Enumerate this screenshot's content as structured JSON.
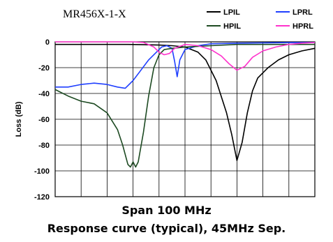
{
  "captions": {
    "line1": "Span 100 MHz",
    "line2": "Response curve (typical), 45MHz Sep."
  },
  "chart_data": {
    "type": "line",
    "title": "MR456X-1-X",
    "xlabel": "",
    "ylabel": "Loss (dB)",
    "xlim": [
      0,
      100
    ],
    "ylim": [
      -120,
      0
    ],
    "yticks": [
      0,
      -20,
      -40,
      -60,
      -80,
      -100,
      -120
    ],
    "grid": true,
    "legend_position": "top-right",
    "series": [
      {
        "name": "LPIL",
        "color": "#000000",
        "x": [
          0,
          10,
          20,
          28,
          34,
          40,
          45,
          50,
          55,
          58,
          62,
          66,
          68,
          70,
          72,
          74,
          76,
          78,
          82,
          86,
          90,
          95,
          100
        ],
        "y": [
          -2,
          -2,
          -2,
          -2,
          -2.2,
          -2.5,
          -3,
          -4,
          -8,
          -14,
          -30,
          -55,
          -72,
          -92,
          -78,
          -55,
          -38,
          -28,
          -20,
          -14,
          -10,
          -7,
          -5
        ]
      },
      {
        "name": "LPRL",
        "color": "#1f3fff",
        "x": [
          0,
          5,
          10,
          15,
          20,
          24,
          27,
          30,
          33,
          36,
          39,
          41,
          43,
          45,
          46,
          47,
          48,
          50,
          55,
          60,
          70,
          80,
          90,
          100
        ],
        "y": [
          -35,
          -35,
          -33,
          -32,
          -33,
          -35,
          -36,
          -30,
          -22,
          -14,
          -8,
          -4,
          -3,
          -5,
          -15,
          -27,
          -14,
          -6,
          -3,
          -1.5,
          -1,
          -0.8,
          -0.6,
          -0.5
        ]
      },
      {
        "name": "HPIL",
        "color": "#1d4a22",
        "x": [
          0,
          5,
          10,
          15,
          20,
          24,
          26,
          28,
          29,
          30,
          31,
          32,
          34,
          36,
          38,
          40,
          42,
          45,
          50,
          60,
          70,
          80,
          90,
          100
        ],
        "y": [
          -37,
          -42,
          -46,
          -48,
          -55,
          -68,
          -80,
          -95,
          -97,
          -93,
          -97,
          -93,
          -70,
          -42,
          -20,
          -10,
          -6,
          -5,
          -4,
          -3,
          -2,
          -2,
          -2,
          -2
        ]
      },
      {
        "name": "HPRL",
        "color": "#ff33cc",
        "x": [
          0,
          10,
          20,
          30,
          34,
          38,
          40,
          42,
          44,
          46,
          50,
          55,
          60,
          64,
          67,
          70,
          73,
          76,
          80,
          85,
          90,
          95,
          100
        ],
        "y": [
          0,
          0,
          0,
          0,
          -0.5,
          -4,
          -8,
          -10,
          -9,
          -5,
          -2,
          -3,
          -6,
          -11,
          -17,
          -22,
          -19,
          -12,
          -7,
          -4,
          -2,
          -1,
          -0.5
        ]
      }
    ]
  }
}
